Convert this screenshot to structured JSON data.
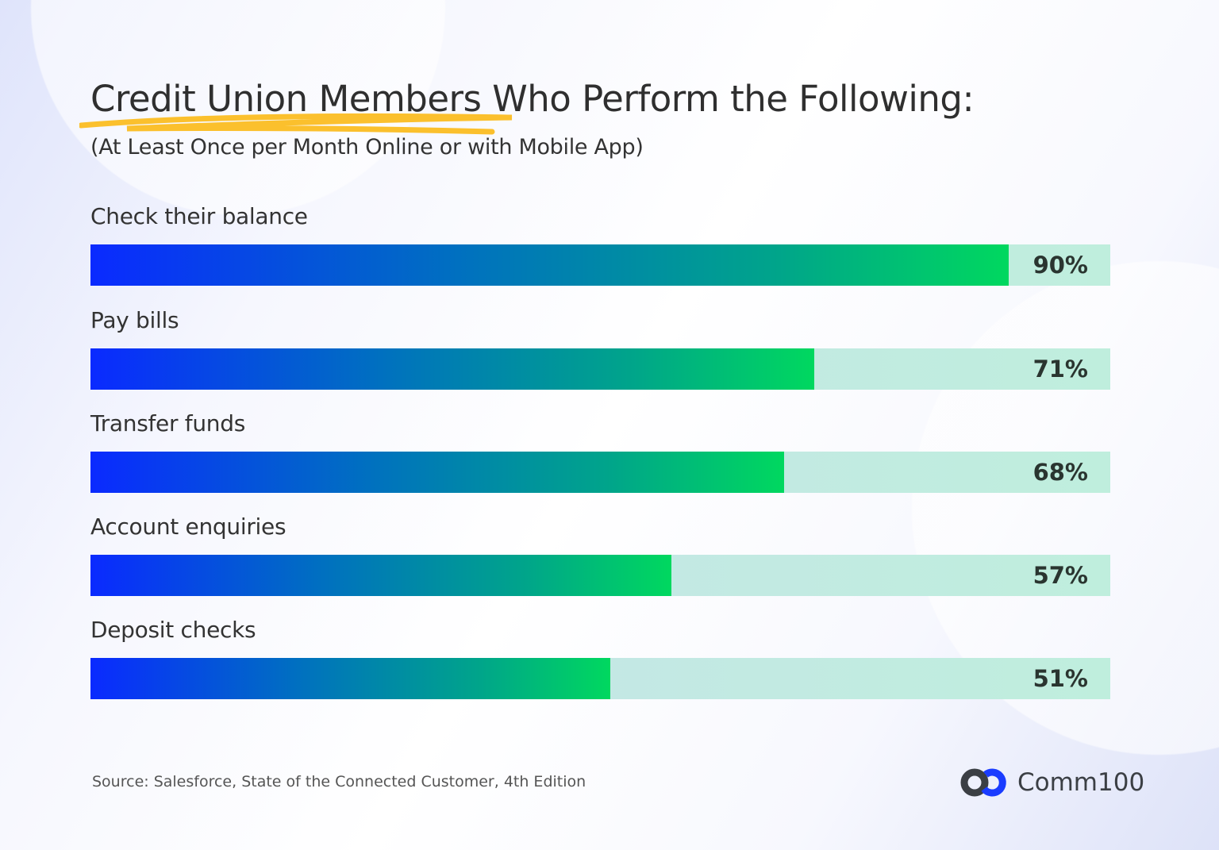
{
  "chart_data": {
    "type": "bar",
    "orientation": "horizontal",
    "title": "Credit Union Members Who Perform the Following:",
    "subtitle": "(At Least Once per Month Online or with Mobile App)",
    "categories": [
      "Check their balance",
      "Pay bills",
      "Transfer funds",
      "Account enquiries",
      "Deposit checks"
    ],
    "values": [
      90,
      71,
      68,
      57,
      51
    ],
    "value_labels": [
      "90%",
      "71%",
      "68%",
      "57%",
      "51%"
    ],
    "xlim": [
      0,
      100
    ],
    "grid": false,
    "colors": {
      "gradient_start": "#0a2aff",
      "gradient_end": "#00d85f",
      "track": "#bfeedd",
      "highlight": "#fbc02d"
    }
  },
  "footer": {
    "source": "Source: Salesforce, State of the Connected Customer, 4th Edition",
    "logo_text": "Comm100"
  }
}
